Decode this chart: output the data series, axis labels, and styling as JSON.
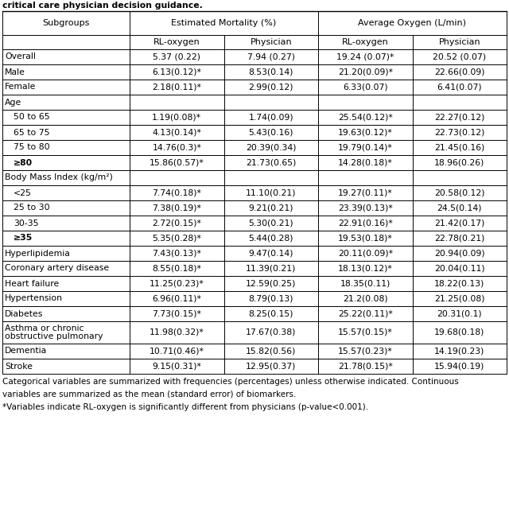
{
  "title_line": "critical care physician decision guidance.",
  "header1": "Subgroups",
  "header2a": "Estimated Mortality (%)",
  "header2b": "Average Oxygen (L/min)",
  "subheader": [
    "RL-oxygen",
    "Physician",
    "RL-oxygen",
    "Physician"
  ],
  "rows": [
    {
      "label": "Overall",
      "indent": 0,
      "category_only": false,
      "values": [
        "5.37 (0.22)",
        "7.94 (0.27)",
        "19.24 (0.07)*",
        "20.52 (0.07)"
      ]
    },
    {
      "label": "Male",
      "indent": 0,
      "category_only": false,
      "values": [
        "6.13(0.12)*",
        "8.53(0.14)",
        "21.20(0.09)*",
        "22.66(0.09)"
      ]
    },
    {
      "label": "Female",
      "indent": 0,
      "category_only": false,
      "values": [
        "2.18(0.11)*",
        "2.99(0.12)",
        "6.33(0.07)",
        "6.41(0.07)"
      ]
    },
    {
      "label": "Age",
      "indent": 0,
      "category_only": true,
      "values": [
        "",
        "",
        "",
        ""
      ]
    },
    {
      "label": "50 to 65",
      "indent": 1,
      "category_only": false,
      "values": [
        "1.19(0.08)*",
        "1.74(0.09)",
        "25.54(0.12)*",
        "22.27(0.12)"
      ]
    },
    {
      "label": "65 to 75",
      "indent": 1,
      "category_only": false,
      "values": [
        "4.13(0.14)*",
        "5.43(0.16)",
        "19.63(0.12)*",
        "22.73(0.12)"
      ]
    },
    {
      "label": "75 to 80",
      "indent": 1,
      "category_only": false,
      "values": [
        "14.76(0.3)*",
        "20.39(0.34)",
        "19.79(0.14)*",
        "21.45(0.16)"
      ]
    },
    {
      "label": "≥80",
      "indent": 1,
      "category_only": false,
      "bold": true,
      "values": [
        "15.86(0.57)*",
        "21.73(0.65)",
        "14.28(0.18)*",
        "18.96(0.26)"
      ]
    },
    {
      "label": "Body Mass Index (kg/m²)",
      "indent": 0,
      "category_only": true,
      "values": [
        "",
        "",
        "",
        ""
      ]
    },
    {
      "label": "<25",
      "indent": 1,
      "category_only": false,
      "values": [
        "7.74(0.18)*",
        "11.10(0.21)",
        "19.27(0.11)*",
        "20.58(0.12)"
      ]
    },
    {
      "label": "25 to 30",
      "indent": 1,
      "category_only": false,
      "values": [
        "7.38(0.19)*",
        "9.21(0.21)",
        "23.39(0.13)*",
        "24.5(0.14)"
      ]
    },
    {
      "label": "30-35",
      "indent": 1,
      "category_only": false,
      "values": [
        "2.72(0.15)*",
        "5.30(0.21)",
        "22.91(0.16)*",
        "21.42(0.17)"
      ]
    },
    {
      "label": "≥35",
      "indent": 1,
      "category_only": false,
      "bold": true,
      "values": [
        "5.35(0.28)*",
        "5.44(0.28)",
        "19.53(0.18)*",
        "22.78(0.21)"
      ]
    },
    {
      "label": "Hyperlipidemia",
      "indent": 0,
      "category_only": false,
      "values": [
        "7.43(0.13)*",
        "9.47(0.14)",
        "20.11(0.09)*",
        "20.94(0.09)"
      ]
    },
    {
      "label": "Coronary artery disease",
      "indent": 0,
      "category_only": false,
      "values": [
        "8.55(0.18)*",
        "11.39(0.21)",
        "18.13(0.12)*",
        "20.04(0.11)"
      ]
    },
    {
      "label": "Heart failure",
      "indent": 0,
      "category_only": false,
      "values": [
        "11.25(0.23)*",
        "12.59(0.25)",
        "18.35(0.11)",
        "18.22(0.13)"
      ]
    },
    {
      "label": "Hypertension",
      "indent": 0,
      "category_only": false,
      "values": [
        "6.96(0.11)*",
        "8.79(0.13)",
        "21.2(0.08)",
        "21.25(0.08)"
      ]
    },
    {
      "label": "Diabetes",
      "indent": 0,
      "category_only": false,
      "values": [
        "7.73(0.15)*",
        "8.25(0.15)",
        "25.22(0.11)*",
        "20.31(0.1)"
      ]
    },
    {
      "label": "Asthma or chronic\nobstructive pulmonary",
      "indent": 0,
      "category_only": false,
      "values": [
        "11.98(0.32)*",
        "17.67(0.38)",
        "15.57(0.15)*",
        "19.68(0.18)"
      ]
    },
    {
      "label": "Dementia",
      "indent": 0,
      "category_only": false,
      "values": [
        "10.71(0.46)*",
        "15.82(0.56)",
        "15.57(0.23)*",
        "14.19(0.23)"
      ]
    },
    {
      "label": "Stroke",
      "indent": 0,
      "category_only": false,
      "values": [
        "9.15(0.31)*",
        "12.95(0.37)",
        "21.78(0.15)*",
        "15.94(0.19)"
      ]
    }
  ],
  "footnote1": "Categorical variables are summarized with frequencies (percentages) unless otherwise indicated. Continuous",
  "footnote2": "variables are summarized as the mean (standard error) of biomarkers.",
  "footnote3": "*Variables indicate RL-oxygen is significantly different from physicians (p-value<0.001)."
}
